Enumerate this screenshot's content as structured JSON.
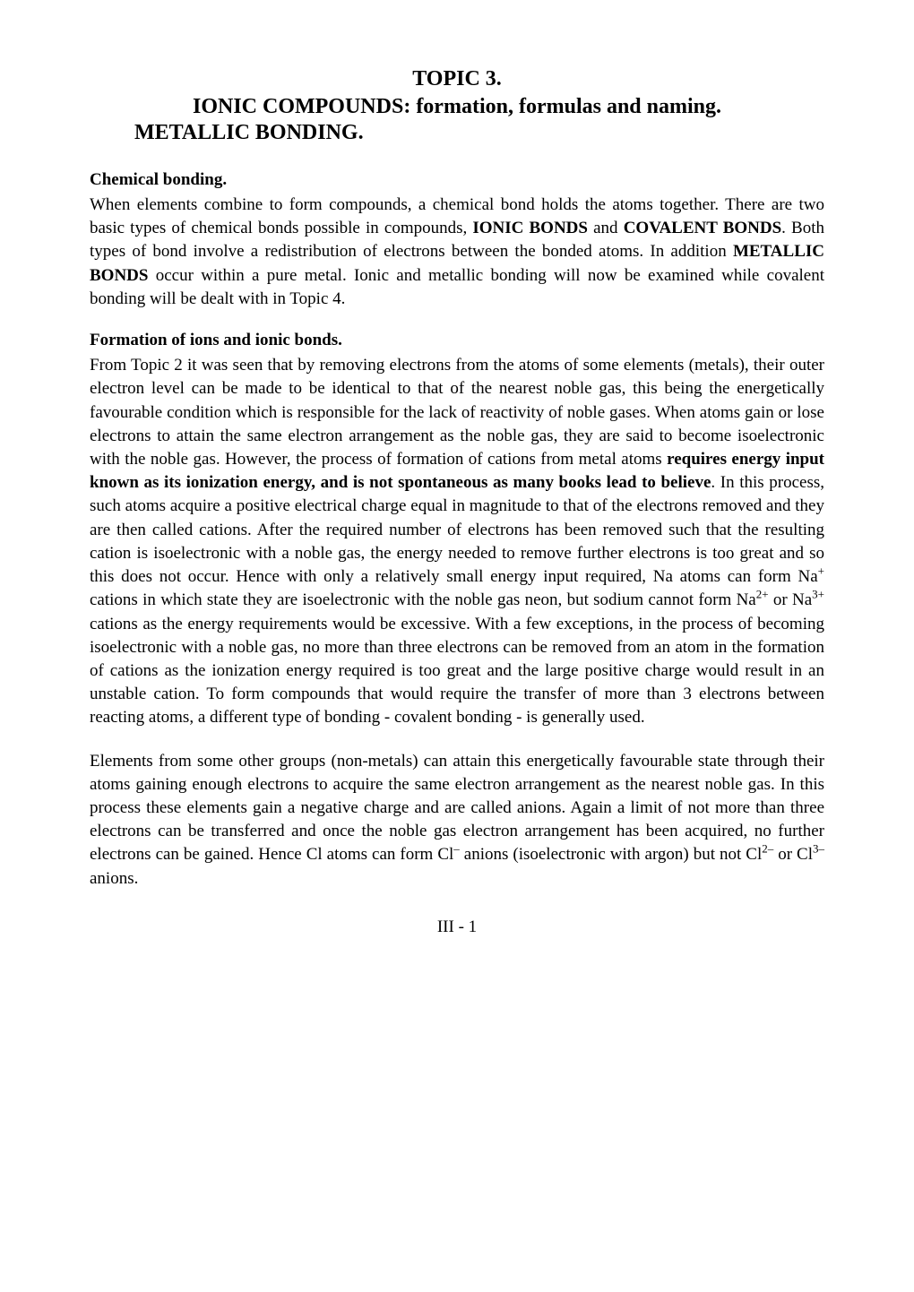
{
  "topicNumber": "TOPIC 3.",
  "mainTitle": "IONIC COMPOUNDS: formation, formulas and naming.",
  "subTitle": "METALLIC BONDING.",
  "section1": {
    "heading": "Chemical bonding.",
    "p1_part1": "When elements combine to form compounds, a chemical bond holds the atoms together.  There are two basic types of chemical bonds possible in compounds, ",
    "p1_bold1": "IONIC BONDS",
    "p1_part2": " and ",
    "p1_bold2": "COVALENT BONDS",
    "p1_part3": ".  Both types of bond involve a redistribution of electrons between the bonded atoms. In addition ",
    "p1_bold3": "METALLIC BONDS",
    "p1_part4": " occur within a pure metal. Ionic and metallic bonding will now be examined while covalent bonding will be dealt with in Topic 4."
  },
  "section2": {
    "heading": "Formation of ions and ionic bonds.",
    "p1_part1": "From Topic 2 it was seen that by removing electrons from the atoms of some elements (metals), their outer electron level can be made to be identical to that of the nearest noble gas, this being the energetically favourable condition which is responsible for the lack of reactivity of noble gases.  When atoms gain or lose electrons to attain the same electron arrangement as the noble gas, they are said to become isoelectronic with the noble gas.   However, the process of formation of cations from metal atoms ",
    "p1_bold1": "requires energy input known as its ionization energy, and is not spontaneous as many books lead to believe",
    "p1_part2": ".  In this process, such atoms acquire a positive electrical charge equal in magnitude to that of the electrons removed and they are then called cations.  After the required number of electrons has been removed such that the resulting cation is isoelectronic with a noble gas, the energy needed to remove further electrons is too great and so this does not occur.  Hence with only a relatively small energy input required, Na atoms can form Na",
    "p1_sup1": "+",
    "p1_part3": " cations in which state they are isoelectronic with the noble gas neon, but sodium cannot form Na",
    "p1_sup2": "2+",
    "p1_part4": " or Na",
    "p1_sup3": "3+",
    "p1_part5": " cations as the energy requirements would be excessive. With a few exceptions, in the process of becoming isoelectronic with a noble gas, no more than three electrons can be removed from an atom in the formation of cations as the ionization energy required is too great and the large positive charge would result in an unstable cation.  To form compounds that would require the transfer of more than 3 electrons between reacting atoms, a different type of bonding - covalent bonding - is generally used.",
    "p2_part1": "Elements from some other groups (non-metals) can attain this energetically favourable state through their atoms gaining enough electrons to acquire the same electron arrangement as the nearest noble gas.  In this process these elements gain a negative charge and are called anions.  Again a limit of not more than three electrons can be transferred and once the noble gas electron arrangement has been acquired, no further electrons can be gained.  Hence Cl atoms can form Cl",
    "p2_sup1": "–",
    "p2_part2": " anions (isoelectronic with argon) but not Cl",
    "p2_sup2": "2–",
    "p2_part3": " or Cl",
    "p2_sup3": "3–",
    "p2_part4": " anions."
  },
  "pageNumber": "III - 1",
  "style": {
    "backgroundColor": "#ffffff",
    "textColor": "#000000",
    "fontFamily": "Times New Roman",
    "bodyFontSize": 19,
    "headingFontSize": 24
  }
}
